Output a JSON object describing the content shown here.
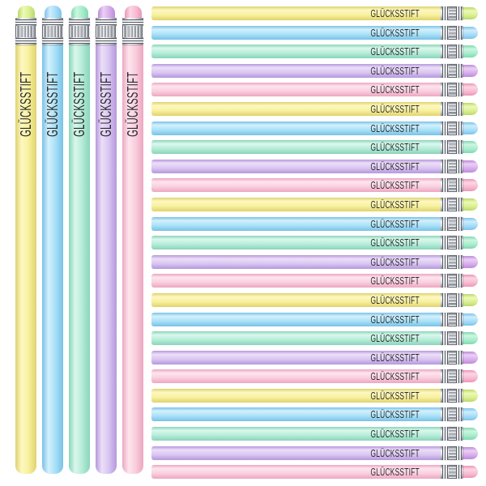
{
  "brand": {
    "label": "GLÜCKSSTIFT"
  },
  "text_color": "#2c2b2e",
  "ferrule": {
    "hi": "#f6f7f9",
    "mid": "#dcdfe4",
    "lo": "#7e838c",
    "line": "#565a62"
  },
  "palette": {
    "yellow": {
      "body_hi": "#fdf8c2",
      "body_mid": "#f8f19e",
      "body_lo": "#dfd26e",
      "eraser_hi": "#eef9b5",
      "eraser": "#d9ee90",
      "eraser_lo": "#b9d96a"
    },
    "blue": {
      "body_hi": "#d4f0fc",
      "body_mid": "#a9e1f7",
      "body_lo": "#79c2e6",
      "eraser_hi": "#cdedfc",
      "eraser": "#a3dbf8",
      "eraser_lo": "#7fc3e8"
    },
    "mint": {
      "body_hi": "#daf8ec",
      "body_mid": "#b6ecd9",
      "body_lo": "#89d4ba",
      "eraser_hi": "#ccf6e0",
      "eraser": "#a5eccb",
      "eraser_lo": "#82d8b2"
    },
    "purple": {
      "body_hi": "#ecdff8",
      "body_mid": "#d9c6f1",
      "body_lo": "#b697dd",
      "eraser_hi": "#ead0f6",
      "eraser": "#d8abea",
      "eraser_lo": "#bb8cd8"
    },
    "pink": {
      "body_hi": "#fde5ee",
      "body_mid": "#f9cfdd",
      "body_lo": "#eda6c1",
      "eraser_hi": "#fbd6e4",
      "eraser": "#f7b9d1",
      "eraser_lo": "#eb96b8"
    }
  },
  "vertical_pencils": {
    "count": 5,
    "order": [
      "yellow",
      "blue",
      "mint",
      "purple",
      "pink"
    ],
    "label": "GLÜCKSSTIFT"
  },
  "horizontal_pencils": {
    "count": 25,
    "pattern": [
      "yellow",
      "blue",
      "mint",
      "purple",
      "pink"
    ],
    "label": "GLÜCKSSTIFT"
  }
}
